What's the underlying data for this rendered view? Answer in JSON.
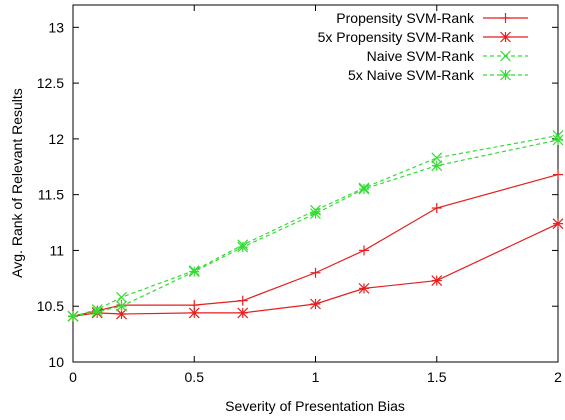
{
  "chart_data": {
    "type": "line",
    "xlabel": "Severity of Presentation Bias",
    "ylabel": "Avg. Rank of Relevant Results",
    "xlim": [
      0,
      2
    ],
    "ylim": [
      10,
      13.2
    ],
    "xticks": [
      0,
      0.5,
      1,
      1.5,
      2
    ],
    "xtick_labels": [
      "0",
      "0.5",
      "1",
      "1.5",
      "2"
    ],
    "yticks": [
      10,
      10.5,
      11,
      11.5,
      12,
      12.5,
      13
    ],
    "ytick_labels": [
      "10",
      "10.5",
      "11",
      "11.5",
      "12",
      "12.5",
      "13"
    ],
    "grid": false,
    "legend_position": "top-right",
    "x": [
      0,
      0.1,
      0.2,
      0.5,
      0.7,
      1,
      1.2,
      1.5,
      2
    ],
    "series": [
      {
        "name": "Propensity SVM-Rank",
        "marker": "plus",
        "dashed": false,
        "color": "#e51e1e",
        "values": [
          10.41,
          10.46,
          10.51,
          10.51,
          10.55,
          10.8,
          11.0,
          11.38,
          11.68
        ]
      },
      {
        "name": "5x Propensity SVM-Rank",
        "marker": "star",
        "dashed": false,
        "color": "#e51e1e",
        "values": [
          10.41,
          10.44,
          10.43,
          10.44,
          10.44,
          10.52,
          10.66,
          10.73,
          11.24
        ]
      },
      {
        "name": "Naive SVM-Rank",
        "marker": "cross",
        "dashed": true,
        "color": "#33dd33",
        "values": [
          10.41,
          10.47,
          10.58,
          10.82,
          11.05,
          11.36,
          11.56,
          11.83,
          12.03
        ]
      },
      {
        "name": "5x Naive SVM-Rank",
        "marker": "star",
        "dashed": true,
        "color": "#33dd33",
        "values": [
          10.41,
          10.45,
          10.5,
          10.81,
          11.03,
          11.33,
          11.55,
          11.76,
          11.99
        ]
      }
    ]
  }
}
